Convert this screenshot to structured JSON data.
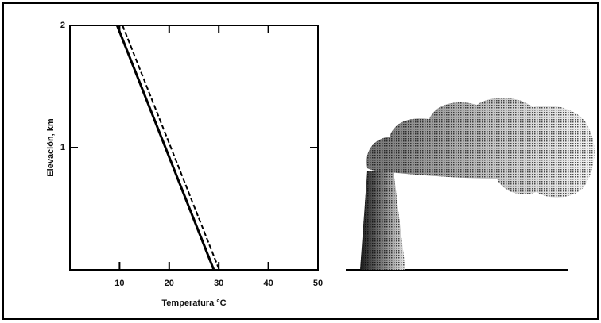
{
  "chart_data": {
    "type": "line",
    "xlabel": "Temperatura °C",
    "ylabel": "Elevación, km",
    "xlim": [
      0,
      50
    ],
    "xticks": [
      10,
      20,
      30,
      40,
      50
    ],
    "ylim": [
      0,
      2
    ],
    "yticks": [
      1,
      2
    ],
    "series": [
      {
        "color": "#000000",
        "dashed": false,
        "x": [
          9.5,
          29
        ],
        "values": [
          2,
          0
        ]
      },
      {
        "color": "#000000",
        "dashed": true,
        "x": [
          10.6,
          30.1
        ],
        "values": [
          2,
          0
        ]
      }
    ]
  }
}
